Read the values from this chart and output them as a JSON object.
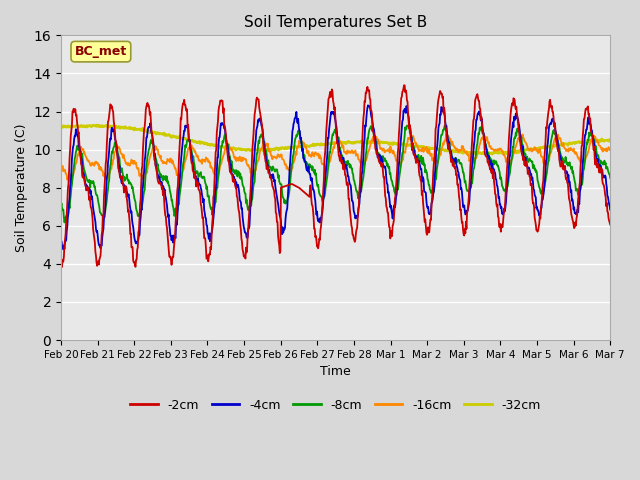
{
  "title": "Soil Temperatures Set B",
  "xlabel": "Time",
  "ylabel": "Soil Temperature (C)",
  "ylim": [
    0,
    16
  ],
  "yticks": [
    0,
    2,
    4,
    6,
    8,
    10,
    12,
    14,
    16
  ],
  "fig_bg_color": "#d8d8d8",
  "plot_bg_color": "#e8e8e8",
  "grid_color": "#ffffff",
  "line_colors": {
    "-2cm": "#cc0000",
    "-4cm": "#0000cc",
    "-8cm": "#009900",
    "-16cm": "#ff8800",
    "-32cm": "#cccc00"
  },
  "line_widths": {
    "-2cm": 1.3,
    "-4cm": 1.3,
    "-8cm": 1.3,
    "-16cm": 1.3,
    "-32cm": 1.8
  },
  "annotation_text": "BC_met",
  "annotation_color": "#8b0000",
  "annotation_bg": "#ffff99",
  "annotation_edge": "#999933",
  "x_labels": [
    "Feb 20",
    "Feb 21",
    "Feb 22",
    "Feb 23",
    "Feb 24",
    "Feb 25",
    "Feb 26",
    "Feb 27",
    "Feb 28",
    "Mar 1",
    "Mar 2",
    "Mar 3",
    "Mar 4",
    "Mar 5",
    "Mar 6",
    "Mar 7"
  ],
  "n_points": 960
}
